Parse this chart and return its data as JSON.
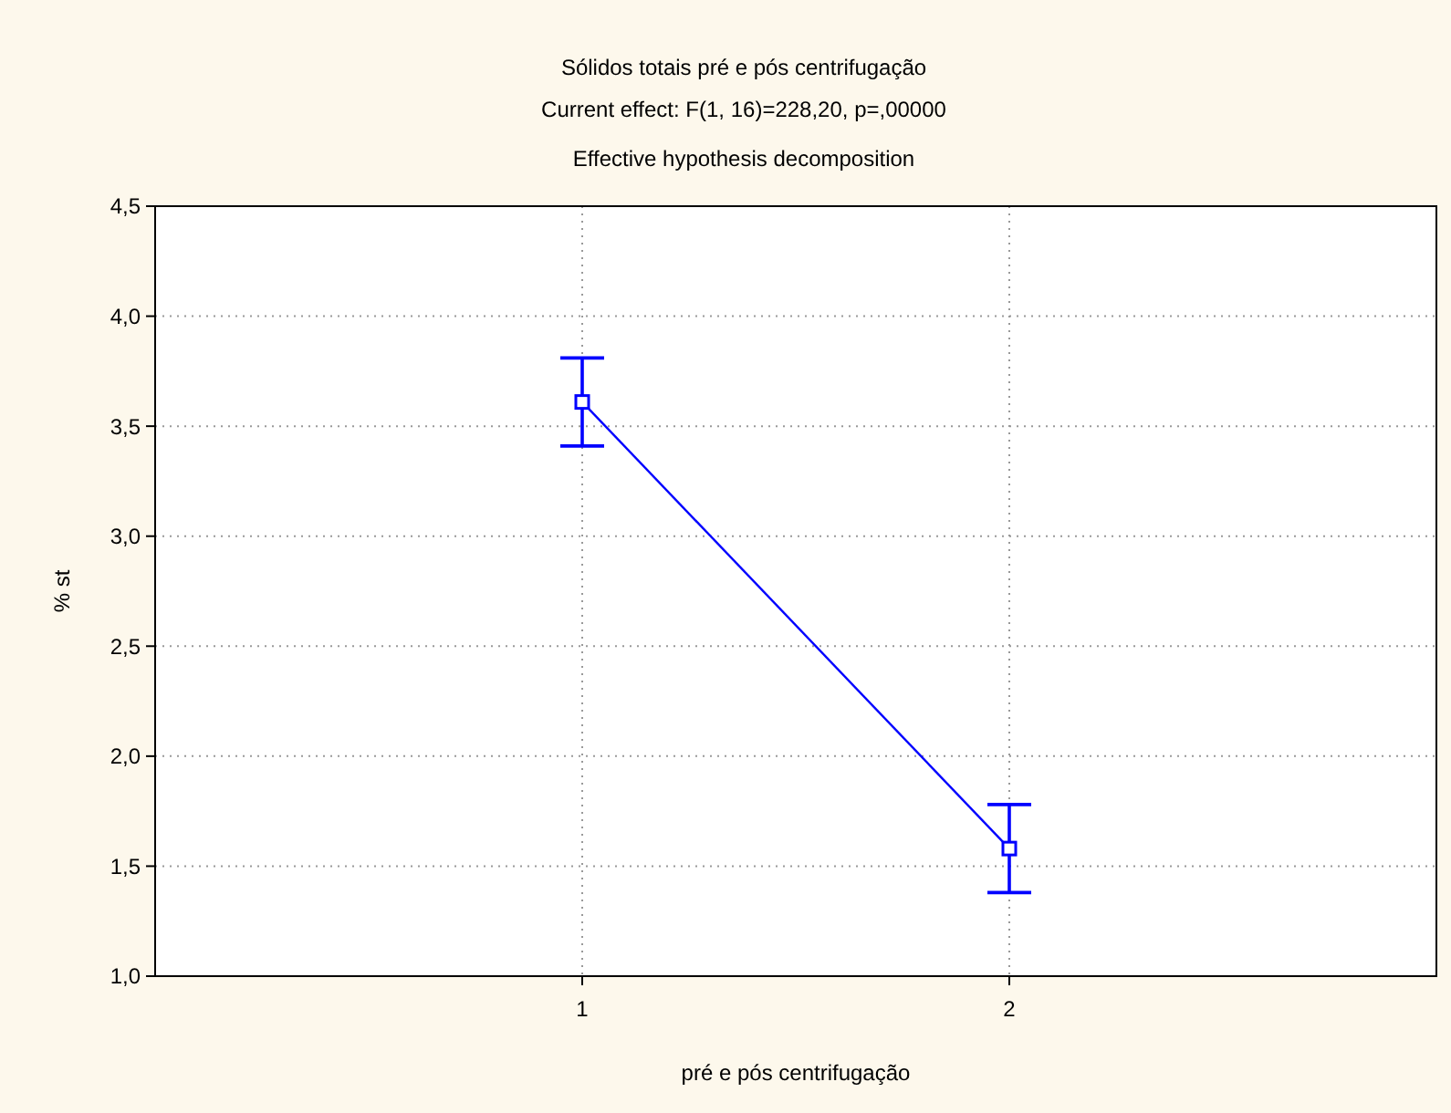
{
  "chart_data": {
    "type": "line",
    "title": "Sólidos totais pré e pós centrifugação",
    "subtitle": "Current effect: F(1, 16)=228,20, p=,00000",
    "annotations": [
      "Effective hypothesis decomposition"
    ],
    "xlabel": "pré e pós centrifugação",
    "ylabel": "% st",
    "categories": [
      "1",
      "2"
    ],
    "series": [
      {
        "color": "#0000ff",
        "values": [
          3.61,
          1.58
        ],
        "errors": [
          0.2,
          0.2
        ]
      }
    ],
    "ylim": [
      1,
      4.5
    ],
    "yticks": [
      {
        "value": 1,
        "label": "1,0"
      },
      {
        "value": 1.5,
        "label": "1,5"
      },
      {
        "value": 2,
        "label": "2,0"
      },
      {
        "value": 2.5,
        "label": "2,5"
      },
      {
        "value": 3,
        "label": "3,0"
      },
      {
        "value": 3.5,
        "label": "3,5"
      },
      {
        "value": 4,
        "label": "4,0"
      },
      {
        "value": 4.5,
        "label": "4,5"
      }
    ],
    "grid": true,
    "marker": "square",
    "line_style": "solid"
  }
}
